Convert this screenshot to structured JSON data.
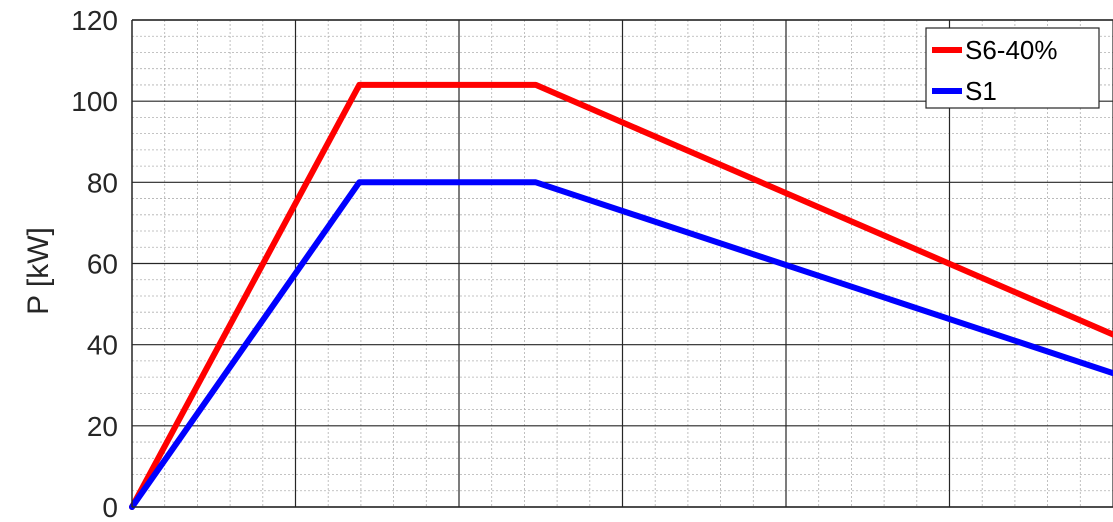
{
  "chart_data": {
    "type": "line",
    "title": "",
    "xlabel": "",
    "ylabel": "P [kW]",
    "ylim": [
      0,
      120
    ],
    "yticks": [
      0,
      20,
      40,
      60,
      80,
      100,
      120
    ],
    "xlim": [
      0,
      6
    ],
    "x_major_gridlines": 6,
    "grid": "on (major and minor)",
    "legend_position": "top-right",
    "series": [
      {
        "name": "S6-40%",
        "color": "#ff0000",
        "x": [
          0,
          1.39,
          2.47,
          6
        ],
        "y": [
          0,
          104,
          104,
          42.5
        ]
      },
      {
        "name": "S1",
        "color": "#0000ff",
        "x": [
          0,
          1.39,
          2.47,
          6
        ],
        "y": [
          0,
          80,
          80,
          33
        ]
      }
    ]
  }
}
